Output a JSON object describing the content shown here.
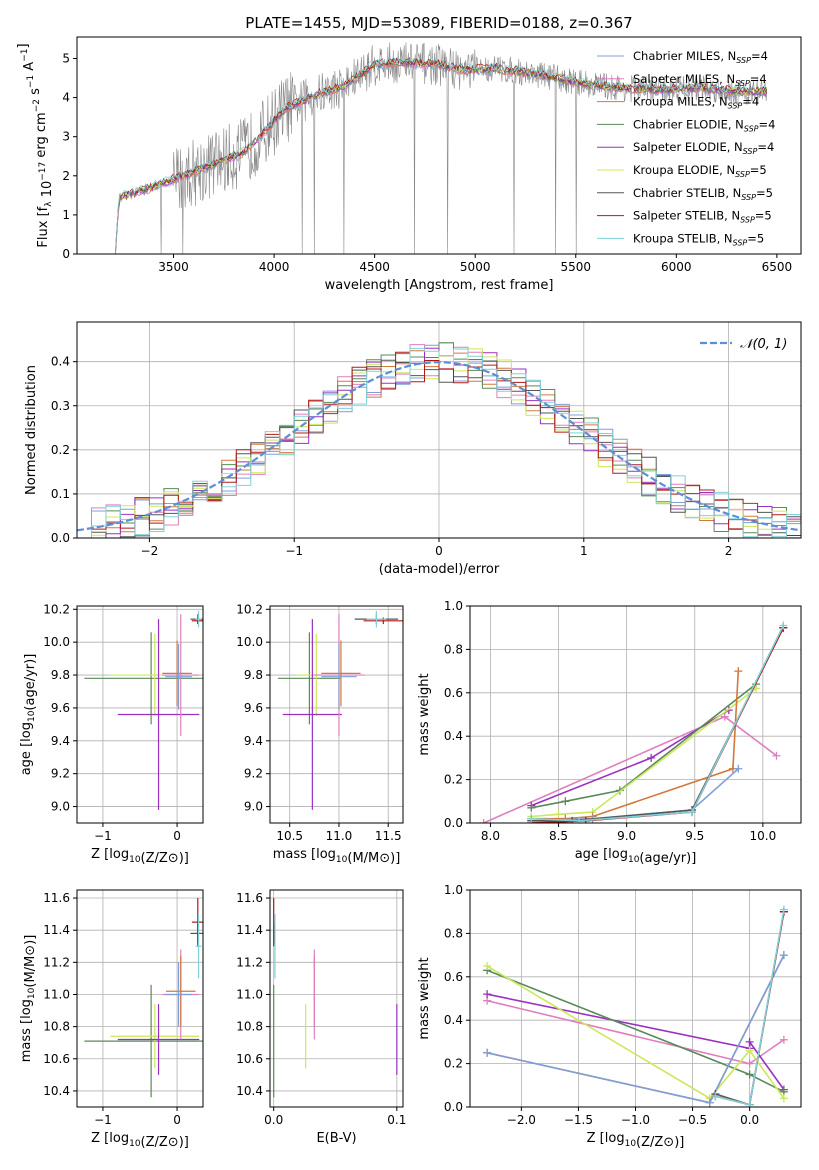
{
  "figure_title": "PLATE=1455, MJD=53089, FIBERID=0188, z=0.367",
  "colors": {
    "chabrier_miles": "#7f9fd8",
    "salpeter_miles": "#e07fc0",
    "kroupa_miles": "#d2783c",
    "chabrier_elodie": "#5a8a5a",
    "salpeter_elodie": "#9a30c0",
    "kroupa_elodie": "#cce85a",
    "chabrier_stelib": "#555555",
    "salpeter_stelib": "#b01818",
    "kroupa_stelib": "#80d0d8",
    "data": "#888888",
    "normal": "#5b8fd6"
  },
  "chart_data": [
    {
      "id": "spectrum",
      "type": "line",
      "title": "PLATE=1455, MJD=53089, FIBERID=0188, z=0.367",
      "xlabel": "wavelength [Angstrom, rest frame]",
      "ylabel": "Flux [f_λ 10^-17 erg cm^-2 s^-1 A^-1]",
      "xlim": [
        3020,
        6620
      ],
      "ylim": [
        0,
        5.55
      ],
      "xticks": [
        3500,
        4000,
        4500,
        5000,
        5500,
        6000,
        6500
      ],
      "yticks": [
        0,
        1,
        2,
        3,
        4,
        5
      ],
      "grid": false,
      "legend_position": "top-right",
      "spectrum_knots": [
        [
          3210,
          0
        ],
        [
          3230,
          1.45
        ],
        [
          3400,
          1.72
        ],
        [
          3550,
          2.0
        ],
        [
          3700,
          2.3
        ],
        [
          3850,
          2.6
        ],
        [
          3950,
          3.1
        ],
        [
          4050,
          3.7
        ],
        [
          4200,
          4.05
        ],
        [
          4350,
          4.3
        ],
        [
          4500,
          4.85
        ],
        [
          4650,
          4.9
        ],
        [
          4800,
          4.85
        ],
        [
          4950,
          4.7
        ],
        [
          5100,
          4.75
        ],
        [
          5300,
          4.6
        ],
        [
          5500,
          4.4
        ],
        [
          5700,
          4.25
        ],
        [
          5900,
          4.2
        ],
        [
          6100,
          4.25
        ],
        [
          6300,
          4.15
        ],
        [
          6450,
          4.15
        ]
      ],
      "series": [
        {
          "name": "Chabrier MILES, N",
          "sub": "SSP",
          "suffix": "=4",
          "color_key": "chabrier_miles"
        },
        {
          "name": "Salpeter MILES, N",
          "sub": "SSP",
          "suffix": "=4",
          "color_key": "salpeter_miles"
        },
        {
          "name": "Kroupa MILES, N",
          "sub": "SSP",
          "suffix": "=4",
          "color_key": "kroupa_miles"
        },
        {
          "name": "Chabrier ELODIE, N",
          "sub": "SSP",
          "suffix": "=4",
          "color_key": "chabrier_elodie"
        },
        {
          "name": "Salpeter ELODIE, N",
          "sub": "SSP",
          "suffix": "=4",
          "color_key": "salpeter_elodie"
        },
        {
          "name": "Kroupa ELODIE, N",
          "sub": "SSP",
          "suffix": "=5",
          "color_key": "kroupa_elodie"
        },
        {
          "name": "Chabrier STELIB, N",
          "sub": "SSP",
          "suffix": "=5",
          "color_key": "chabrier_stelib"
        },
        {
          "name": "Salpeter STELIB, N",
          "sub": "SSP",
          "suffix": "=5",
          "color_key": "salpeter_stelib"
        },
        {
          "name": "Kroupa STELIB, N",
          "sub": "SSP",
          "suffix": "=5",
          "color_key": "kroupa_stelib"
        }
      ]
    },
    {
      "id": "residuals",
      "type": "line",
      "xlabel": "(data-model)/error",
      "ylabel": "Normed distribution",
      "xlim": [
        -2.5,
        2.5
      ],
      "ylim": [
        0,
        0.49
      ],
      "xticks": [
        -2,
        -1,
        0,
        1,
        2
      ],
      "yticks": [
        0.0,
        0.1,
        0.2,
        0.3,
        0.4
      ],
      "grid": true,
      "legend_position": "top-right",
      "legend": "𝒩(0, 1)",
      "bin_width": 0.1
    },
    {
      "id": "age_vs_Z",
      "type": "scatter",
      "xlabel": "Z [log10(Z/Z⊙)]",
      "ylabel": "age [log10(age/yr)]",
      "xlim": [
        -1.35,
        0.35
      ],
      "ylim": [
        8.9,
        10.22
      ],
      "xticks": [
        -1,
        0
      ],
      "yticks": [
        9.0,
        9.2,
        9.4,
        9.6,
        9.8,
        10.0,
        10.2
      ],
      "grid": true,
      "points": [
        {
          "color_key": "chabrier_elodie",
          "x": -0.35,
          "xerr": 0.9,
          "y": 9.78,
          "yerr": 0.28
        },
        {
          "color_key": "kroupa_elodie",
          "x": -0.3,
          "xerr": 0.6,
          "y": 9.8,
          "yerr": 0.25
        },
        {
          "color_key": "salpeter_elodie",
          "x": -0.25,
          "xerr": 0.55,
          "y": 9.56,
          "yerr": 0.58
        },
        {
          "color_key": "salpeter_miles",
          "x": 0.05,
          "xerr": 0.25,
          "y": 9.8,
          "yerr": 0.37
        },
        {
          "color_key": "kroupa_miles",
          "x": 0.0,
          "xerr": 0.2,
          "y": 9.81,
          "yerr": 0.2
        },
        {
          "color_key": "chabrier_miles",
          "x": 0.02,
          "xerr": 0.18,
          "y": 9.79,
          "yerr": 0.2
        },
        {
          "color_key": "chabrier_stelib",
          "x": 0.28,
          "xerr": 0.1,
          "y": 10.14,
          "yerr": 0.03
        },
        {
          "color_key": "salpeter_stelib",
          "x": 0.28,
          "xerr": 0.08,
          "y": 10.13,
          "yerr": 0.02
        },
        {
          "color_key": "kroupa_stelib",
          "x": 0.29,
          "xerr": 0.04,
          "y": 10.14,
          "yerr": 0.05
        }
      ]
    },
    {
      "id": "age_vs_mass",
      "type": "scatter",
      "xlabel": "mass [log10(M/M⊙)]",
      "xlim": [
        10.3,
        11.65
      ],
      "ylim": [
        8.9,
        10.22
      ],
      "xticks": [
        10.5,
        11.0,
        11.5
      ],
      "yticks": [
        9.0,
        9.2,
        9.4,
        9.6,
        9.8,
        10.0,
        10.2
      ],
      "grid": true,
      "points": [
        {
          "color_key": "chabrier_elodie",
          "x": 10.7,
          "xerr": 0.32,
          "y": 9.78,
          "yerr": 0.28
        },
        {
          "color_key": "kroupa_elodie",
          "x": 10.77,
          "xerr": 0.2,
          "y": 9.8,
          "yerr": 0.25
        },
        {
          "color_key": "salpeter_elodie",
          "x": 10.73,
          "xerr": 0.3,
          "y": 9.56,
          "yerr": 0.58
        },
        {
          "color_key": "salpeter_miles",
          "x": 11.0,
          "xerr": 0.26,
          "y": 9.8,
          "yerr": 0.37
        },
        {
          "color_key": "kroupa_miles",
          "x": 11.02,
          "xerr": 0.2,
          "y": 9.81,
          "yerr": 0.2
        },
        {
          "color_key": "chabrier_miles",
          "x": 11.0,
          "xerr": 0.18,
          "y": 9.79,
          "yerr": 0.2
        },
        {
          "color_key": "chabrier_stelib",
          "x": 11.38,
          "xerr": 0.22,
          "y": 10.14,
          "yerr": 0.03
        },
        {
          "color_key": "salpeter_stelib",
          "x": 11.45,
          "xerr": 0.2,
          "y": 10.13,
          "yerr": 0.02
        },
        {
          "color_key": "kroupa_stelib",
          "x": 11.38,
          "xerr": 0.1,
          "y": 10.14,
          "yerr": 0.05
        }
      ]
    },
    {
      "id": "weight_vs_age",
      "type": "line",
      "xlabel": "age [log10(age/yr)]",
      "ylabel": "mass weight",
      "xlim": [
        7.85,
        10.28
      ],
      "ylim": [
        0,
        1.0
      ],
      "xticks": [
        8.0,
        8.5,
        9.0,
        9.5,
        10.0
      ],
      "yticks": [
        0.0,
        0.2,
        0.4,
        0.6,
        0.8,
        1.0
      ],
      "grid": true,
      "series": [
        {
          "color_key": "salpeter_miles",
          "x": [
            7.95,
            9.72,
            10.1
          ],
          "y": [
            0.0,
            0.49,
            0.31
          ]
        },
        {
          "color_key": "salpeter_elodie",
          "x": [
            8.3,
            9.18,
            9.75
          ],
          "y": [
            0.08,
            0.3,
            0.52
          ]
        },
        {
          "color_key": "chabrier_elodie",
          "x": [
            8.3,
            8.55,
            8.95,
            9.95
          ],
          "y": [
            0.07,
            0.1,
            0.15,
            0.64
          ]
        },
        {
          "color_key": "kroupa_elodie",
          "x": [
            8.3,
            8.5,
            8.75,
            9.95
          ],
          "y": [
            0.03,
            0.04,
            0.05,
            0.62
          ]
        },
        {
          "color_key": "kroupa_miles",
          "x": [
            8.3,
            8.55,
            8.75,
            9.78,
            9.82
          ],
          "y": [
            0.02,
            0.02,
            0.03,
            0.25,
            0.7
          ]
        },
        {
          "color_key": "chabrier_miles",
          "x": [
            8.3,
            8.75,
            9.48,
            9.82
          ],
          "y": [
            0.01,
            0.02,
            0.06,
            0.25
          ]
        },
        {
          "color_key": "chabrier_stelib",
          "x": [
            8.3,
            8.6,
            9.48,
            10.15
          ],
          "y": [
            0.01,
            0.01,
            0.06,
            0.9
          ]
        },
        {
          "color_key": "salpeter_stelib",
          "x": [
            8.3,
            8.7,
            9.48,
            10.15
          ],
          "y": [
            0.0,
            0.01,
            0.05,
            0.9
          ]
        },
        {
          "color_key": "kroupa_stelib",
          "x": [
            8.3,
            8.65,
            9.48,
            10.15
          ],
          "y": [
            0.02,
            0.01,
            0.05,
            0.91
          ]
        }
      ]
    },
    {
      "id": "mass_vs_Z",
      "type": "scatter",
      "xlabel": "Z [log10(Z/Z⊙)]",
      "ylabel": "mass [log10(M/M⊙)]",
      "xlim": [
        -1.35,
        0.35
      ],
      "ylim": [
        10.3,
        11.65
      ],
      "xticks": [
        -1,
        0
      ],
      "yticks": [
        10.4,
        10.6,
        10.8,
        11.0,
        11.2,
        11.4,
        11.6
      ],
      "grid": true,
      "points": [
        {
          "color_key": "chabrier_elodie",
          "x": -0.35,
          "xerr": 0.9,
          "y": 10.71,
          "yerr": 0.35
        },
        {
          "color_key": "kroupa_elodie",
          "x": -0.3,
          "xerr": 0.6,
          "y": 10.74,
          "yerr": 0.2
        },
        {
          "color_key": "salpeter_elodie",
          "x": -0.25,
          "xerr": 0.55,
          "y": 10.72,
          "yerr": 0.22
        },
        {
          "color_key": "salpeter_miles",
          "x": 0.05,
          "xerr": 0.25,
          "y": 11.0,
          "yerr": 0.28
        },
        {
          "color_key": "kroupa_miles",
          "x": 0.05,
          "xerr": 0.2,
          "y": 11.02,
          "yerr": 0.22
        },
        {
          "color_key": "chabrier_miles",
          "x": 0.02,
          "xerr": 0.18,
          "y": 11.0,
          "yerr": 0.2
        },
        {
          "color_key": "chabrier_stelib",
          "x": 0.28,
          "xerr": 0.1,
          "y": 11.38,
          "yerr": 0.06
        },
        {
          "color_key": "salpeter_stelib",
          "x": 0.28,
          "xerr": 0.08,
          "y": 11.45,
          "yerr": 0.15
        },
        {
          "color_key": "kroupa_stelib",
          "x": 0.29,
          "xerr": 0.04,
          "y": 11.3,
          "yerr": 0.2
        }
      ]
    },
    {
      "id": "mass_vs_ebv",
      "type": "scatter",
      "xlabel": "E(B-V)",
      "xlim": [
        -0.003,
        0.105
      ],
      "ylim": [
        10.3,
        11.65
      ],
      "xticks": [
        0.0,
        0.1
      ],
      "yticks": [
        10.4,
        10.6,
        10.8,
        11.0,
        11.2,
        11.4,
        11.6
      ],
      "grid": true,
      "points": [
        {
          "color_key": "chabrier_elodie",
          "x": 0.0,
          "xerr": 0.0,
          "y": 10.71,
          "yerr": 0.35
        },
        {
          "color_key": "salpeter_stelib",
          "x": 0.0,
          "xerr": 0.0,
          "y": 11.45,
          "yerr": 0.15
        },
        {
          "color_key": "kroupa_stelib",
          "x": 0.001,
          "xerr": 0.0,
          "y": 11.3,
          "yerr": 0.2
        },
        {
          "color_key": "chabrier_stelib",
          "x": 0.0,
          "xerr": 0.0,
          "y": 11.38,
          "yerr": 0.06
        },
        {
          "color_key": "kroupa_elodie",
          "x": 0.026,
          "xerr": 0.0,
          "y": 10.74,
          "yerr": 0.2
        },
        {
          "color_key": "kroupa_miles",
          "x": 0.033,
          "xerr": 0.0,
          "y": 11.02,
          "yerr": 0.22
        },
        {
          "color_key": "salpeter_miles",
          "x": 0.033,
          "xerr": 0.0,
          "y": 11.0,
          "yerr": 0.28
        },
        {
          "color_key": "salpeter_elodie",
          "x": 0.1,
          "xerr": 0.0,
          "y": 10.72,
          "yerr": 0.22
        }
      ]
    },
    {
      "id": "weight_vs_Z",
      "type": "line",
      "xlabel": "Z [log10(Z/Z⊙)]",
      "ylabel": "mass weight",
      "xlim": [
        -2.45,
        0.45
      ],
      "ylim": [
        0,
        1.0
      ],
      "xticks": [
        -2.0,
        -1.5,
        -1.0,
        -0.5,
        0.0
      ],
      "yticks": [
        0.0,
        0.2,
        0.4,
        0.6,
        0.8,
        1.0
      ],
      "grid": true,
      "series": [
        {
          "color_key": "salpeter_miles",
          "x": [
            -2.3,
            0.0,
            0.3
          ],
          "y": [
            0.49,
            0.2,
            0.31
          ]
        },
        {
          "color_key": "salpeter_elodie",
          "x": [
            -2.3,
            0.0,
            0.0,
            0.3
          ],
          "y": [
            0.52,
            0.27,
            0.3,
            0.08
          ]
        },
        {
          "color_key": "chabrier_elodie",
          "x": [
            -2.3,
            0.0,
            0.3
          ],
          "y": [
            0.63,
            0.15,
            0.07
          ]
        },
        {
          "color_key": "kroupa_elodie",
          "x": [
            -2.3,
            -0.35,
            0.0,
            0.3
          ],
          "y": [
            0.65,
            0.04,
            0.26,
            0.04
          ]
        },
        {
          "color_key": "kroupa_miles",
          "x": [
            -2.3,
            -0.35,
            0.3
          ],
          "y": [
            0.25,
            0.02,
            0.7
          ]
        },
        {
          "color_key": "chabrier_miles",
          "x": [
            -2.3,
            -0.35,
            0.3
          ],
          "y": [
            0.25,
            0.02,
            0.7
          ]
        },
        {
          "color_key": "chabrier_stelib",
          "x": [
            -0.3,
            0.0,
            0.3
          ],
          "y": [
            0.06,
            0.01,
            0.9
          ]
        },
        {
          "color_key": "salpeter_stelib",
          "x": [
            -0.3,
            0.0,
            0.3
          ],
          "y": [
            0.05,
            0.01,
            0.9
          ]
        },
        {
          "color_key": "kroupa_stelib",
          "x": [
            -0.3,
            0.0,
            0.3
          ],
          "y": [
            0.05,
            0.01,
            0.91
          ]
        }
      ]
    }
  ]
}
